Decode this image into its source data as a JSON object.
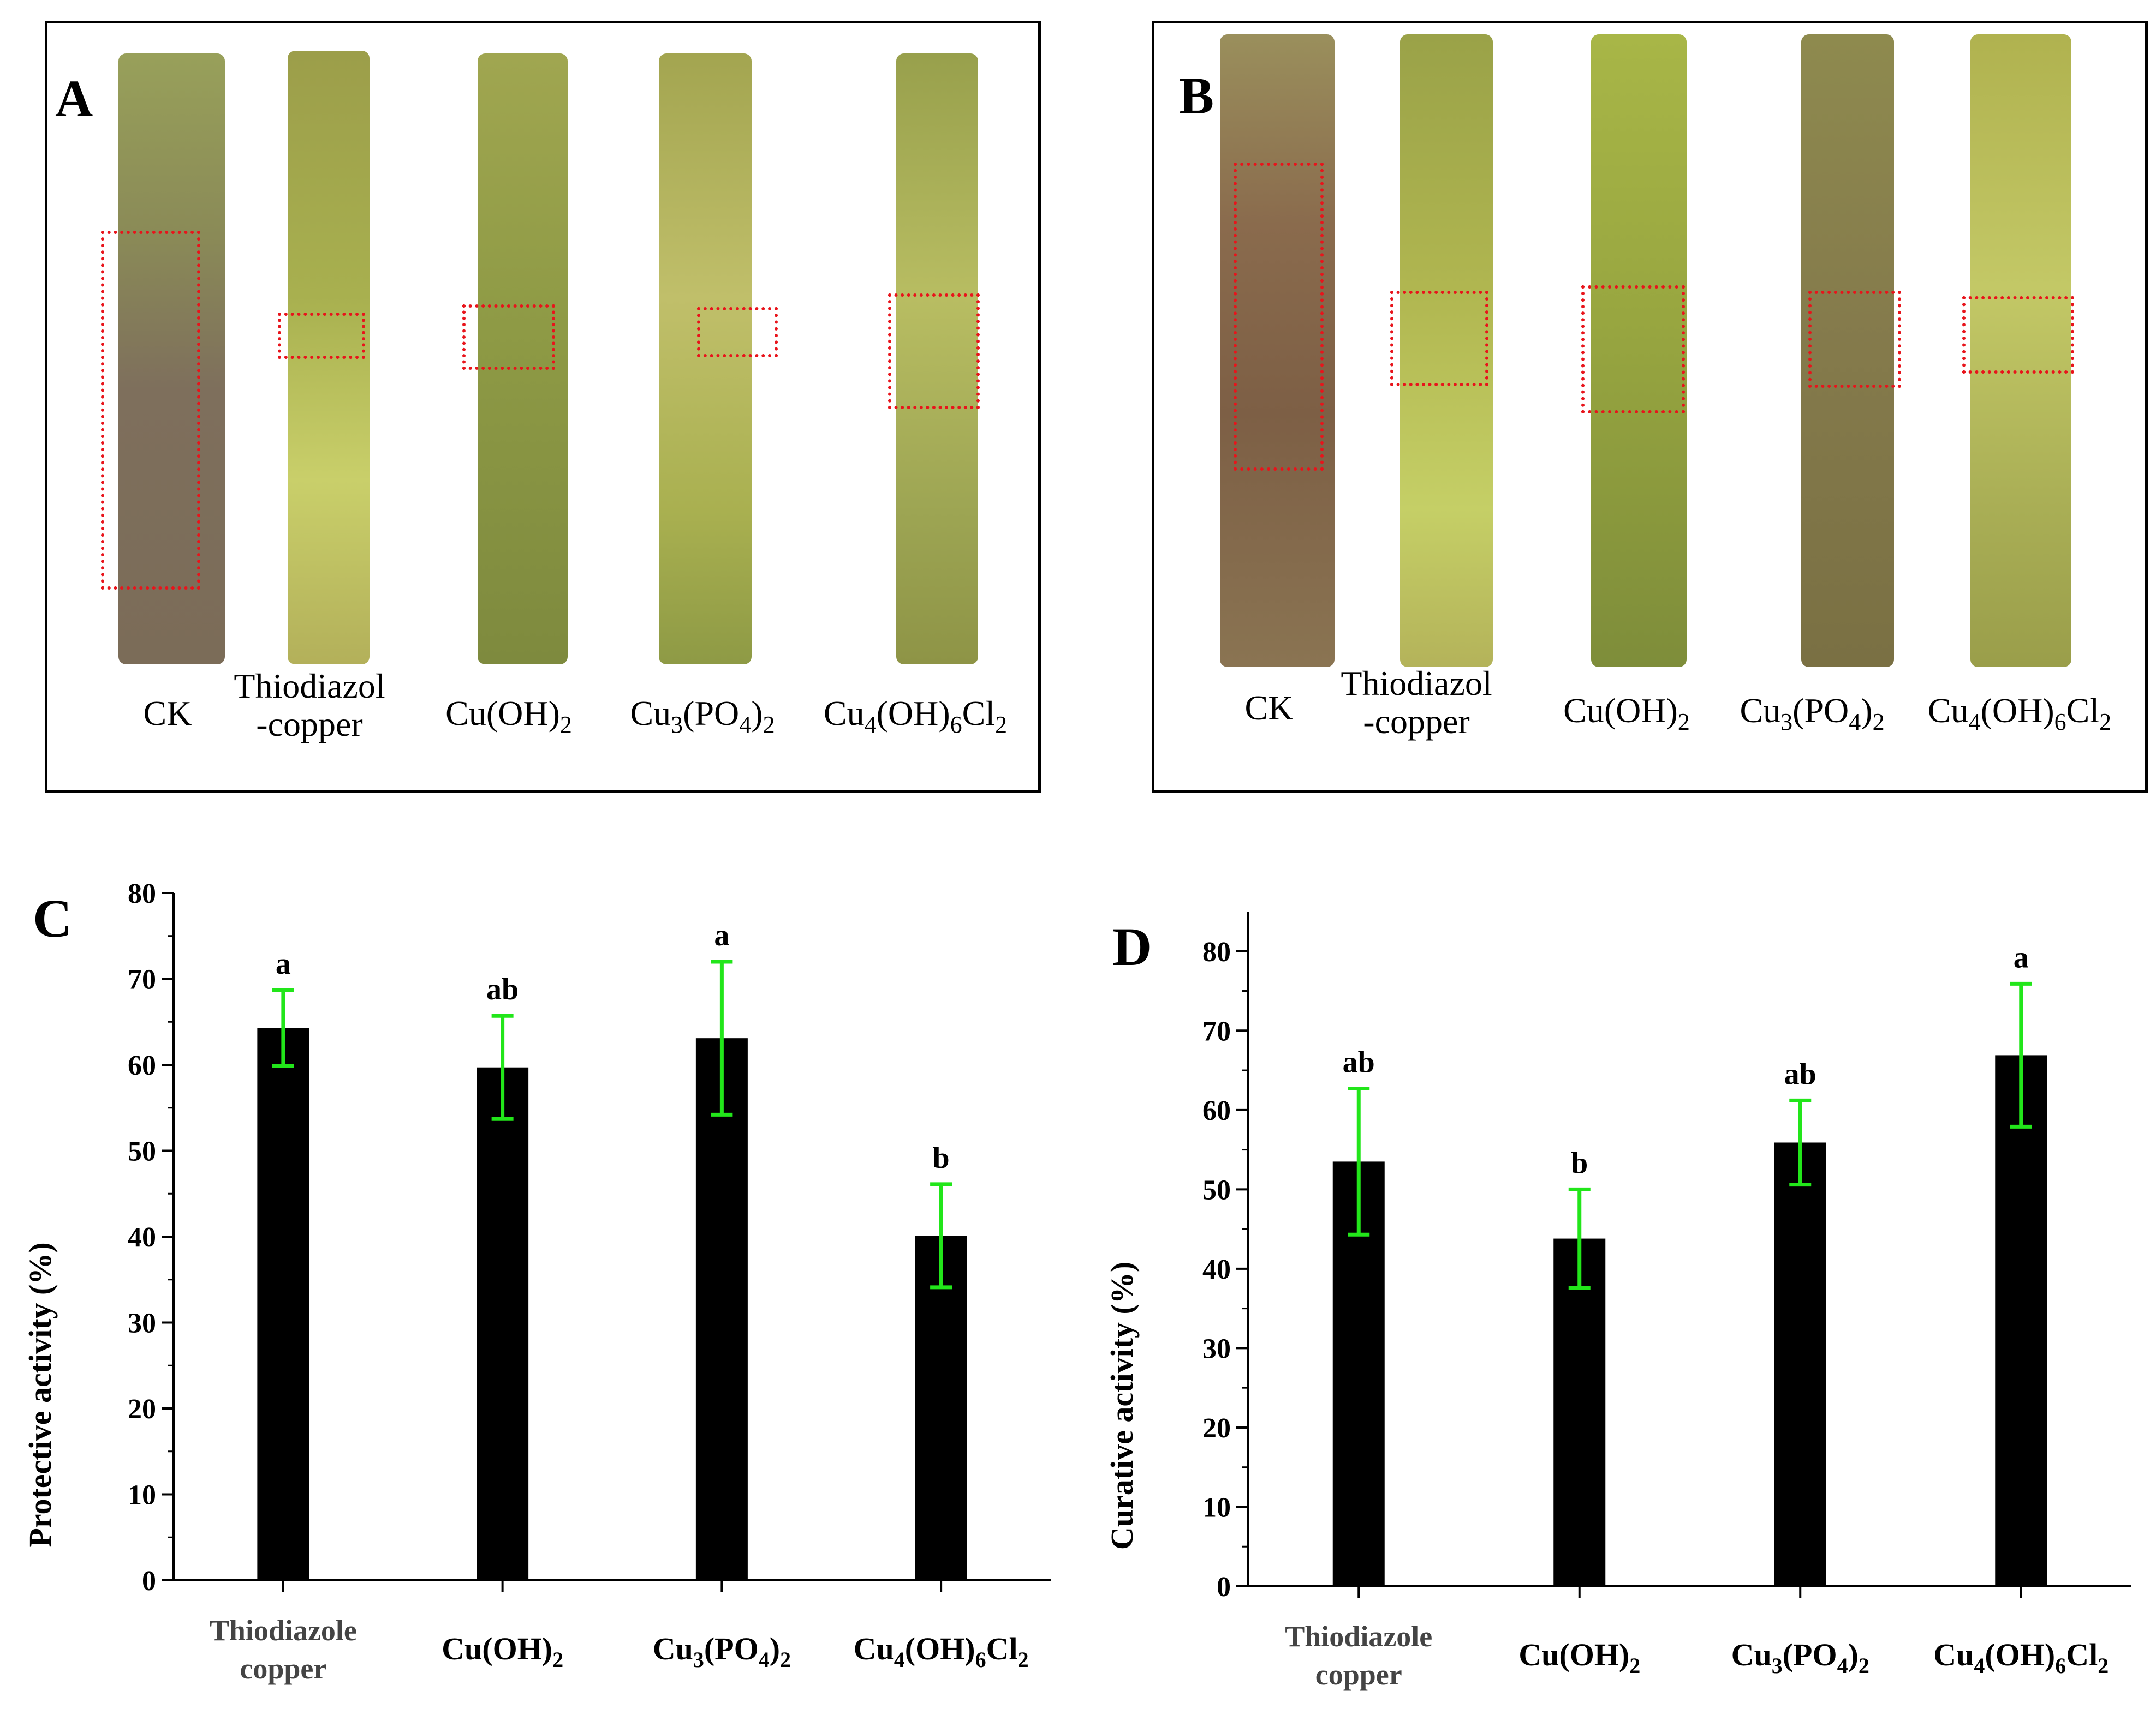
{
  "panel_a": {
    "letter": "A",
    "labels": [
      {
        "text": "CK"
      },
      {
        "line1": "Thiodiazol",
        "line2": "-copper"
      },
      {
        "base": "Cu(OH)",
        "s1": "2"
      },
      {
        "base": "Cu",
        "s1": "3",
        "mid": "(PO",
        "s2": "4",
        "end": ")",
        "s3": "2"
      },
      {
        "base": "Cu",
        "s1": "4",
        "mid": "(OH)",
        "s2": "6",
        "end": "Cl",
        "s3": "2"
      }
    ]
  },
  "panel_b": {
    "letter": "B",
    "labels": [
      {
        "text": "CK"
      },
      {
        "line1": "Thiodiazol",
        "line2": "-copper"
      },
      {
        "base": "Cu(OH)",
        "s1": "2"
      },
      {
        "base": "Cu",
        "s1": "3",
        "mid": "(PO",
        "s2": "4",
        "end": ")",
        "s3": "2"
      },
      {
        "base": "Cu",
        "s1": "4",
        "mid": "(OH)",
        "s2": "6",
        "end": "Cl",
        "s3": "2"
      }
    ]
  },
  "colors": {
    "bar": "#000000",
    "error_bar": "#22e61a",
    "lesion_box": "#e8141b",
    "stem_green": "#9aa445",
    "stem_lesion": "#7d5a3c"
  },
  "chart_data": [
    {
      "panel": "C",
      "type": "bar",
      "ylabel": "Protective activity (%)",
      "ylim": [
        0,
        80
      ],
      "yticks": [
        0,
        10,
        20,
        30,
        40,
        50,
        60,
        70,
        80
      ],
      "categories": [
        {
          "line1": "Thiodiazole",
          "line2": "copper"
        },
        {
          "base": "Cu(OH)",
          "s1": "2"
        },
        {
          "base": "Cu",
          "s1": "3",
          "mid": "(PO",
          "s2": "4",
          "end": ")",
          "s3": "2"
        },
        {
          "base": "Cu",
          "s1": "4",
          "mid": "(OH)",
          "s2": "6",
          "end": "Cl",
          "s3": "2"
        }
      ],
      "values": [
        64.3,
        59.7,
        63.1,
        40.1
      ],
      "errors": [
        4.4,
        6.0,
        8.9,
        6.0
      ],
      "significance": [
        "a",
        "ab",
        "a",
        "b"
      ]
    },
    {
      "panel": "D",
      "type": "bar",
      "ylabel": "Curative activity (%)",
      "ylim": [
        0,
        85
      ],
      "yticks": [
        0,
        10,
        20,
        30,
        40,
        50,
        60,
        70,
        80
      ],
      "categories": [
        {
          "line1": "Thiodiazole",
          "line2": "copper"
        },
        {
          "base": "Cu(OH)",
          "s1": "2"
        },
        {
          "base": "Cu",
          "s1": "3",
          "mid": "(PO",
          "s2": "4",
          "end": ")",
          "s3": "2"
        },
        {
          "base": "Cu",
          "s1": "4",
          "mid": "(OH)",
          "s2": "6",
          "end": "Cl",
          "s3": "2"
        }
      ],
      "values": [
        53.5,
        43.8,
        55.9,
        66.9
      ],
      "errors": [
        9.2,
        6.2,
        5.3,
        9.0
      ],
      "significance": [
        "ab",
        "b",
        "ab",
        "a"
      ]
    }
  ]
}
